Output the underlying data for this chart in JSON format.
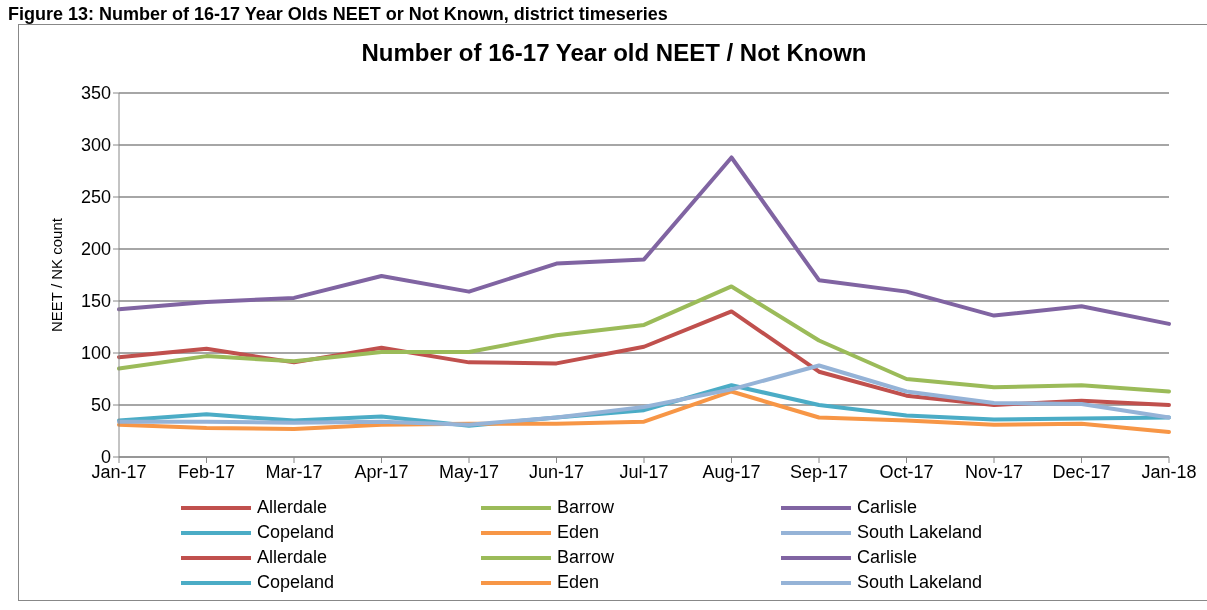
{
  "chart_data": {
    "type": "line",
    "title": "Number of 16-17 Year old NEET / Not Known",
    "ylabel": "NEET / NK count",
    "annotations": [
      "Figure 13: Number of 16-17 Year Olds NEET or Not Known, district timeseries"
    ],
    "categories": [
      "Jan-17",
      "Feb-17",
      "Mar-17",
      "Apr-17",
      "May-17",
      "Jun-17",
      "Jul-17",
      "Aug-17",
      "Sep-17",
      "Oct-17",
      "Nov-17",
      "Dec-17",
      "Jan-18"
    ],
    "series": [
      {
        "name": "Allerdale",
        "color": "#c0504d",
        "values": [
          96,
          104,
          91,
          105,
          91,
          90,
          106,
          140,
          82,
          59,
          50,
          54,
          50
        ]
      },
      {
        "name": "Barrow",
        "color": "#9bbb59",
        "values": [
          85,
          97,
          92,
          101,
          101,
          117,
          127,
          164,
          112,
          75,
          67,
          69,
          63
        ]
      },
      {
        "name": "Carlisle",
        "color": "#8064a2",
        "values": [
          142,
          149,
          153,
          174,
          159,
          186,
          190,
          288,
          170,
          159,
          136,
          145,
          128
        ]
      },
      {
        "name": "Copeland",
        "color": "#4bacc6",
        "values": [
          35,
          41,
          35,
          39,
          30,
          38,
          45,
          69,
          50,
          40,
          36,
          37,
          38
        ]
      },
      {
        "name": "Eden",
        "color": "#f79646",
        "values": [
          31,
          28,
          27,
          31,
          32,
          32,
          34,
          63,
          38,
          35,
          31,
          32,
          24
        ]
      },
      {
        "name": "South Lakeland",
        "color": "#95b3d7",
        "values": [
          34,
          34,
          33,
          34,
          31,
          38,
          48,
          65,
          88,
          63,
          52,
          51,
          38
        ]
      },
      {
        "name": "Allerdale",
        "color": "#c0504d",
        "values": [
          null,
          null,
          null,
          null,
          null,
          null,
          null,
          null,
          null,
          null,
          null,
          null,
          null
        ]
      },
      {
        "name": "Barrow",
        "color": "#9bbb59",
        "values": [
          null,
          null,
          null,
          null,
          null,
          null,
          null,
          null,
          null,
          null,
          null,
          null,
          null
        ]
      },
      {
        "name": "Carlisle",
        "color": "#8064a2",
        "values": [
          null,
          null,
          null,
          null,
          null,
          null,
          null,
          null,
          null,
          null,
          null,
          null,
          null
        ]
      },
      {
        "name": "Copeland",
        "color": "#4bacc6",
        "values": [
          null,
          null,
          null,
          null,
          null,
          null,
          null,
          null,
          null,
          null,
          null,
          null,
          null
        ]
      },
      {
        "name": "Eden",
        "color": "#f79646",
        "values": [
          null,
          null,
          null,
          null,
          null,
          null,
          null,
          null,
          null,
          null,
          null,
          null,
          null
        ]
      },
      {
        "name": "South Lakeland",
        "color": "#95b3d7",
        "values": [
          null,
          null,
          null,
          null,
          null,
          null,
          null,
          null,
          null,
          null,
          null,
          null,
          null
        ]
      }
    ],
    "ylim": [
      0,
      350
    ],
    "yticks": [
      0,
      50,
      100,
      150,
      200,
      250,
      300,
      350
    ],
    "grid": "y",
    "legend": "bottom",
    "marker": "none",
    "line_style": "solid"
  }
}
